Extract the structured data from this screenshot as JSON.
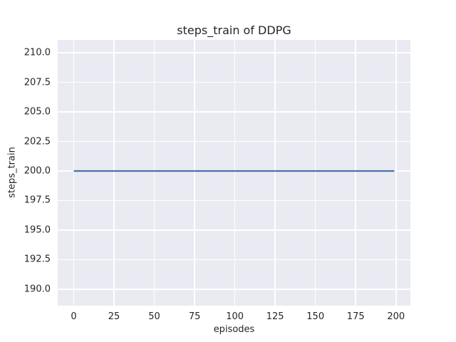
{
  "chart_data": {
    "type": "line",
    "title": "steps_train of DDPG",
    "xlabel": "episodes",
    "ylabel": "steps_train",
    "series": [
      {
        "name": "steps_train",
        "x": [
          0,
          199
        ],
        "y": [
          200,
          200
        ],
        "color": "#4c72b0"
      }
    ],
    "xlim": [
      -9.95,
      208.95
    ],
    "ylim": [
      188.6,
      211.1
    ],
    "xticks": [
      0,
      25,
      50,
      75,
      100,
      125,
      150,
      175,
      200
    ],
    "xtick_labels": [
      "0",
      "25",
      "50",
      "75",
      "100",
      "125",
      "150",
      "175",
      "200"
    ],
    "yticks": [
      190.0,
      192.5,
      195.0,
      197.5,
      200.0,
      202.5,
      205.0,
      207.5,
      210.0
    ],
    "ytick_labels": [
      "190.0",
      "192.5",
      "195.0",
      "197.5",
      "200.0",
      "202.5",
      "205.0",
      "207.5",
      "210.0"
    ],
    "grid": true,
    "legend": "none",
    "styles": {
      "figure_bg": "#ffffff",
      "axes_bg": "#eaeaf2",
      "grid_color": "#ffffff",
      "text_color": "#262626"
    }
  }
}
